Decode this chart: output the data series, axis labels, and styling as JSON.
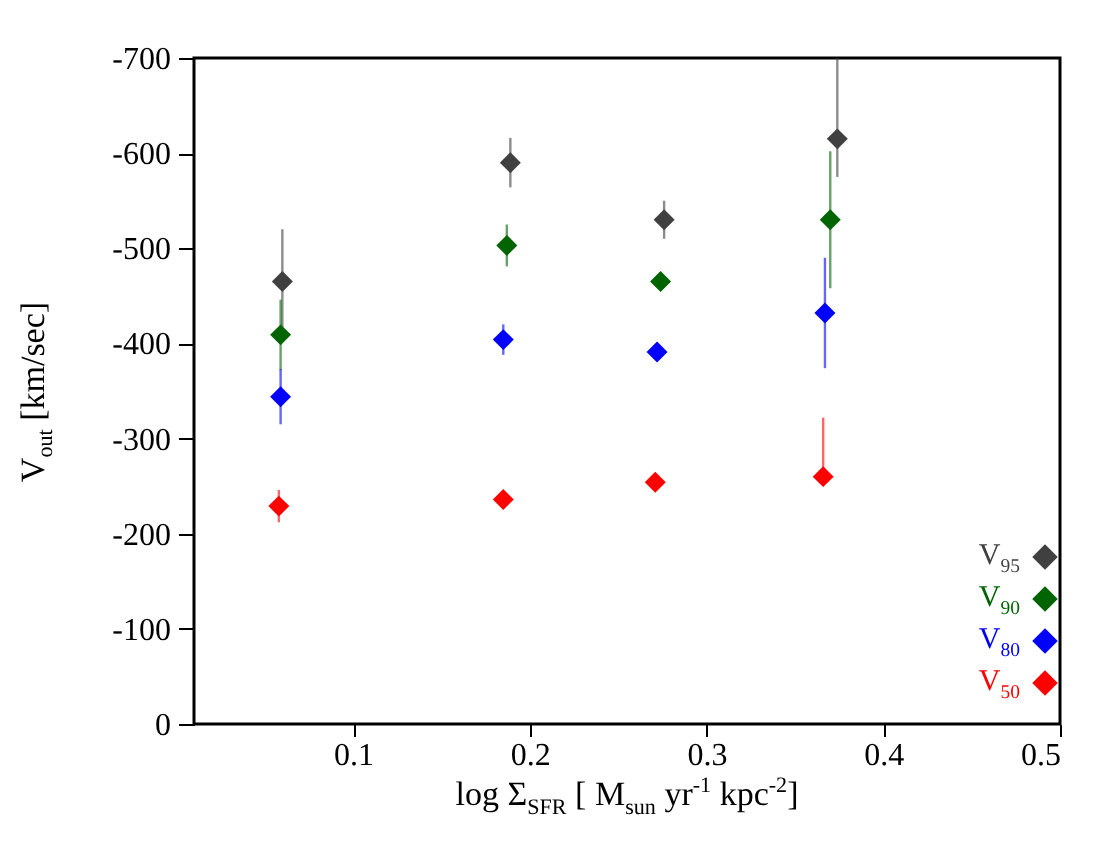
{
  "chart_data": {
    "type": "scatter",
    "xlabel": "log Σ$_{SFR}$ [ M$_{sun}$ yr$^{-1}$ kpc$^{-2}$]",
    "ylabel": "V$_{out}$ [km/sec]",
    "xlim": [
      0.01,
      0.5
    ],
    "xticks": [
      0.1,
      0.2,
      0.3,
      0.4,
      0.5
    ],
    "ylim": [
      0,
      -700
    ],
    "yticks": [
      0,
      -100,
      -200,
      -300,
      -400,
      -500,
      -600,
      -700
    ],
    "grid": false,
    "legend": "bottom right",
    "marker": "diamond",
    "series": [
      {
        "name": "V$_{95}$",
        "color": "#404040",
        "x": [
          0.06,
          0.189,
          0.276,
          0.374
        ],
        "values": [
          -465,
          -590,
          -530,
          -615
        ],
        "errors": [
          55,
          26,
          20,
          [
            -700,
            -575
          ]
        ]
      },
      {
        "name": "V$_{90}$",
        "color": "#006400",
        "x": [
          0.059,
          0.187,
          0.274,
          0.37
        ],
        "values": [
          -409,
          -503,
          -465,
          -530
        ],
        "errors": [
          37,
          22,
          null,
          72
        ]
      },
      {
        "name": "V$_{80}$",
        "color": "#0000ff",
        "x": [
          0.059,
          0.185,
          0.272,
          0.367
        ],
        "values": [
          -344,
          -404,
          -391,
          -432
        ],
        "errors": [
          29,
          16,
          null,
          58
        ]
      },
      {
        "name": "V$_{50}$",
        "color": "#ff0000",
        "x": [
          0.058,
          0.185,
          0.271,
          0.366
        ],
        "values": [
          -229,
          -236,
          -254,
          -260
        ],
        "errors": [
          17,
          null,
          null,
          [
            -322,
            -252
          ]
        ]
      }
    ]
  }
}
